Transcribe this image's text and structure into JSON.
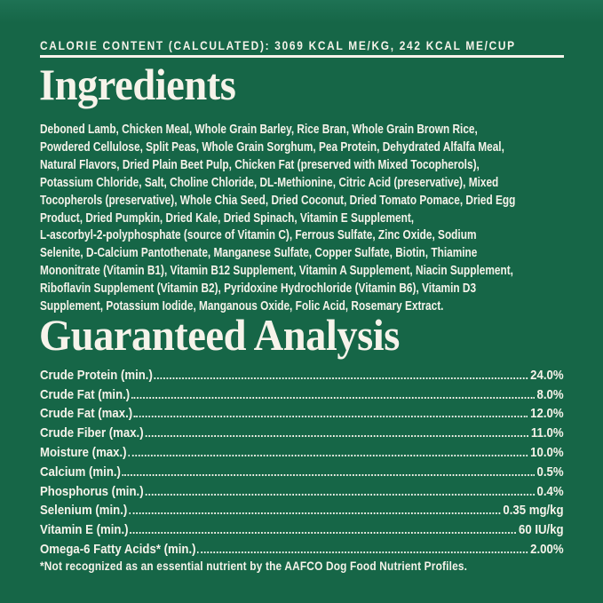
{
  "colors": {
    "background": "#166647",
    "text": "#f6f3ea"
  },
  "header": {
    "calorie_line": "CALORIE CONTENT (CALCULATED): 3069 KCAL ME/KG, 242 KCAL ME/CUP"
  },
  "ingredients": {
    "title": "Ingredients",
    "lines": [
      "Deboned Lamb, Chicken Meal, Whole Grain Barley, Rice Bran, Whole Grain Brown Rice,",
      "Powdered Cellulose, Split Peas, Whole Grain Sorghum, Pea Protein, Dehydrated Alfalfa Meal,",
      "Natural Flavors, Dried Plain Beet Pulp, Chicken Fat (preserved with Mixed Tocopherols),",
      "Potassium Chloride, Salt, Choline Chloride, DL-Methionine, Citric Acid (preservative), Mixed",
      "Tocopherols (preservative), Whole Chia Seed, Dried Coconut, Dried Tomato Pomace, Dried Egg",
      "Product, Dried Pumpkin, Dried Kale, Dried Spinach, Vitamin E Supplement,",
      "L-ascorbyl-2-polyphosphate (source of Vitamin C), Ferrous Sulfate, Zinc Oxide, Sodium",
      "Selenite, D-Calcium Pantothenate, Manganese Sulfate, Copper Sulfate, Biotin, Thiamine",
      "Mononitrate (Vitamin B1), Vitamin B12 Supplement, Vitamin A Supplement, Niacin Supplement,",
      "Riboflavin Supplement (Vitamin B2), Pyridoxine Hydrochloride (Vitamin B6), Vitamin D3",
      "Supplement, Potassium Iodide, Manganous Oxide, Folic Acid, Rosemary Extract."
    ]
  },
  "guaranteed_analysis": {
    "title": "Guaranteed Analysis",
    "rows": [
      {
        "label": "Crude Protein (min.)",
        "value": "24.0%"
      },
      {
        "label": "Crude Fat (min.)",
        "value": "8.0%"
      },
      {
        "label": "Crude Fat (max.)",
        "value": "12.0%"
      },
      {
        "label": "Crude Fiber (max.)",
        "value": "11.0%"
      },
      {
        "label": "Moisture (max.)",
        "value": "10.0%"
      },
      {
        "label": "Calcium (min.)",
        "value": "0.5%"
      },
      {
        "label": "Phosphorus (min.)",
        "value": "0.4%"
      },
      {
        "label": "Selenium (min.)",
        "value": "0.35 mg/kg"
      },
      {
        "label": "Vitamin E (min.)",
        "value": "60 IU/kg"
      },
      {
        "label": "Omega-6 Fatty Acids* (min.)",
        "value": "2.00%"
      }
    ],
    "footnote": "*Not recognized as an essential nutrient by the AAFCO Dog Food Nutrient Profiles."
  }
}
